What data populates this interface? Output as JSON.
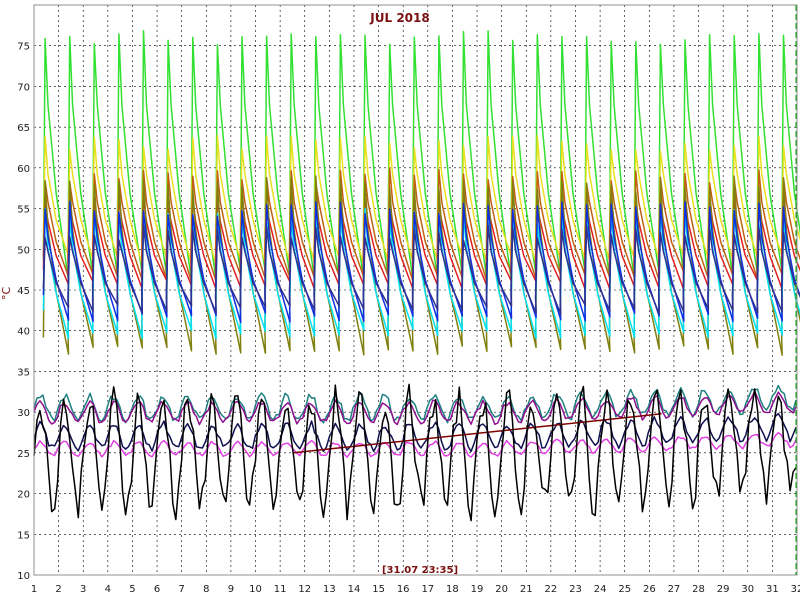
{
  "chart_data": {
    "type": "line",
    "title": "JUL 2018",
    "status_text": "[31.07 23:35]",
    "ylabel": "°C",
    "xlabel": "",
    "xlim": [
      1,
      32
    ],
    "ylim": [
      10,
      80
    ],
    "x_ticks": [
      1,
      2,
      3,
      4,
      5,
      6,
      7,
      8,
      9,
      10,
      11,
      12,
      13,
      14,
      15,
      16,
      17,
      18,
      19,
      20,
      21,
      22,
      23,
      24,
      25,
      26,
      27,
      28,
      29,
      30,
      31,
      32
    ],
    "y_ticks": [
      10,
      15,
      20,
      25,
      30,
      35,
      40,
      45,
      50,
      55,
      60,
      65,
      70,
      75
    ],
    "grid": true,
    "colors": {
      "frame": "#909090",
      "grid": "#000000",
      "marker_line": "#00a000",
      "title": "#7a1010"
    },
    "series": [
      {
        "color": "#32e032",
        "day_peak": 77,
        "day_min": 46
      },
      {
        "color": "#e8e020",
        "day_peak": 64,
        "day_min": 48
      },
      {
        "color": "#c06010",
        "day_peak": 60,
        "day_min": 46
      },
      {
        "color": "#e02020",
        "day_peak": 57,
        "day_min": 45
      },
      {
        "color": "#808010",
        "day_peak": 59,
        "day_min": 37
      },
      {
        "color": "#00e0f0",
        "day_peak": 55,
        "day_min": 39
      },
      {
        "color": "#1030e0",
        "day_peak": 56,
        "day_min": 41
      },
      {
        "color": "#303090",
        "day_peak": 53,
        "day_min": 42
      },
      {
        "color": "#208080",
        "avg": 30.5,
        "amp": 1.5
      },
      {
        "color": "#901090",
        "avg": 30,
        "amp": 1.2
      },
      {
        "color": "#101050",
        "avg": 27,
        "amp": 1.5
      },
      {
        "color": "#e040e0",
        "avg": 25.5,
        "amp": 0.8
      },
      {
        "color": "#800000",
        "points": [
          [
            11.5,
            25
          ],
          [
            26.5,
            29.8
          ]
        ]
      },
      {
        "color": "#000000",
        "avg": 25,
        "amp": 6.5
      }
    ]
  }
}
